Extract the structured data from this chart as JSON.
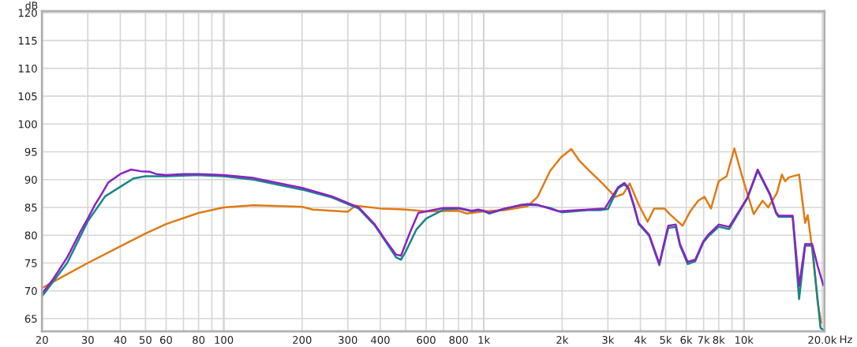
{
  "chart_data": {
    "type": "line",
    "ylabel": "dB",
    "xlim": [
      20,
      20400
    ],
    "ylim": [
      62.7,
      120.3
    ],
    "log": "x",
    "grid": true,
    "legend": false,
    "marker": "none",
    "line_style": "solid",
    "xticks": [
      20,
      30,
      40,
      50,
      60,
      {
        "value": 70,
        "label": null
      },
      80,
      {
        "value": 90,
        "label": null
      },
      100,
      200,
      300,
      400,
      {
        "value": 500,
        "label": null
      },
      600,
      {
        "value": 700,
        "label": null
      },
      800,
      {
        "value": 900,
        "label": null
      },
      {
        "value": 1000,
        "label": "1k"
      },
      {
        "value": 2000,
        "label": "2k"
      },
      {
        "value": 3000,
        "label": "3k"
      },
      {
        "value": 4000,
        "label": "4k"
      },
      {
        "value": 5000,
        "label": "5k"
      },
      {
        "value": 6000,
        "label": "6k"
      },
      {
        "value": 7000,
        "label": "7k"
      },
      {
        "value": 8000,
        "label": "8k"
      },
      {
        "value": 9000,
        "label": null
      },
      {
        "value": 10000,
        "label": "10k"
      },
      {
        "value": 20000,
        "label": "20.0k"
      }
    ],
    "xlabel": "Hz",
    "yticks": [
      65,
      70,
      75,
      80,
      85,
      90,
      95,
      100,
      105,
      110,
      115,
      120
    ],
    "series": [
      {
        "color": "#e07b14",
        "x": [
          20,
          25,
          30,
          40,
          50,
          60,
          80,
          100,
          130,
          200,
          220,
          300,
          320,
          400,
          500,
          600,
          800,
          860,
          1000,
          1200,
          1470,
          1610,
          1800,
          1980,
          2170,
          2320,
          2540,
          2860,
          3200,
          3430,
          3640,
          3940,
          4260,
          4520,
          4950,
          5180,
          5810,
          6220,
          6670,
          7060,
          7470,
          8000,
          8580,
          9190,
          9840,
          10400,
          10900,
          11800,
          12400,
          13400,
          14000,
          14400,
          14900,
          16300,
          17200,
          17600,
          18300,
          19200,
          19800
        ],
        "values": [
          70.5,
          73,
          75,
          78,
          80.3,
          82,
          84,
          85,
          85.4,
          85.1,
          84.6,
          84.2,
          85.3,
          84.8,
          84.6,
          84.3,
          84.4,
          83.9,
          84.3,
          84.5,
          85.2,
          86.9,
          91.6,
          94,
          95.5,
          93.5,
          91.6,
          89.3,
          86.9,
          87.4,
          89.3,
          85.5,
          82.4,
          84.8,
          84.8,
          83.8,
          81.7,
          84.3,
          86.2,
          86.9,
          84.8,
          89.7,
          90.6,
          95.6,
          90.6,
          86.9,
          83.8,
          86.2,
          85,
          87.6,
          90.9,
          89.7,
          90.4,
          90.9,
          82.2,
          83.6,
          77.5,
          68.1,
          64.3
        ]
      },
      {
        "color": "#17868a",
        "x": [
          20,
          25,
          30,
          35,
          40,
          45,
          50,
          60,
          80,
          100,
          130,
          200,
          260,
          300,
          330,
          380,
          420,
          460,
          480,
          500,
          550,
          600,
          700,
          800,
          900,
          950,
          1000,
          1050,
          1200,
          1400,
          1600,
          1800,
          2000,
          2500,
          2800,
          3000,
          3280,
          3470,
          3600,
          3770,
          3940,
          4320,
          4730,
          4950,
          5120,
          5470,
          5680,
          6080,
          6500,
          6980,
          7300,
          8000,
          8780,
          10300,
          11300,
          12600,
          13300,
          13600,
          15400,
          16300,
          17200,
          18300,
          19700,
          20200
        ],
        "values": [
          69,
          75,
          82.5,
          87,
          88.7,
          90.2,
          90.6,
          90.6,
          90.8,
          90.6,
          90,
          88.2,
          86.8,
          85.6,
          84.8,
          81.8,
          78.8,
          76,
          75.6,
          77,
          81,
          83,
          84.6,
          84.8,
          84.3,
          84.5,
          84.3,
          83.9,
          84.7,
          85.5,
          85.4,
          84.9,
          84.1,
          84.5,
          84.5,
          84.7,
          88.4,
          89.2,
          88.3,
          85.3,
          82,
          79.9,
          74.6,
          78.5,
          81.3,
          81.5,
          78.1,
          74.8,
          75.3,
          78.7,
          79.8,
          81.5,
          81.1,
          86.6,
          91.6,
          87.2,
          83.9,
          83.3,
          83.3,
          68.5,
          78.1,
          78.1,
          63.3,
          63
        ]
      },
      {
        "color": "#8b22c4",
        "x": [
          20,
          22,
          25,
          28,
          30,
          32,
          34,
          36,
          40,
          44,
          48,
          52,
          55,
          60,
          70,
          80,
          100,
          130,
          200,
          260,
          300,
          330,
          380,
          420,
          460,
          480,
          520,
          560,
          600,
          700,
          800,
          900,
          950,
          1000,
          1050,
          1200,
          1470,
          1600,
          1930,
          2500,
          2920,
          3280,
          3470,
          3600,
          3770,
          3940,
          4320,
          4730,
          4950,
          5120,
          5470,
          5680,
          6080,
          6500,
          6980,
          7300,
          8000,
          8780,
          10300,
          11300,
          12600,
          13300,
          13600,
          15400,
          16300,
          17200,
          18300,
          19200,
          20200
        ],
        "values": [
          69.5,
          72,
          76,
          80.5,
          83,
          85.5,
          87.5,
          89.5,
          91,
          91.8,
          91.5,
          91.4,
          91,
          90.8,
          91,
          91,
          90.8,
          90.3,
          88.5,
          87,
          85.8,
          85,
          82,
          79,
          76.5,
          76.3,
          80.5,
          84,
          84.3,
          84.9,
          84.9,
          84.4,
          84.6,
          84.4,
          84,
          84.8,
          85.6,
          85.5,
          84.3,
          84.6,
          84.8,
          88.6,
          89.4,
          88.5,
          85.5,
          82.2,
          80.1,
          74.9,
          78.9,
          81.7,
          81.9,
          78.4,
          75.2,
          75.6,
          78.9,
          80.1,
          81.9,
          81.5,
          86.7,
          91.8,
          87.4,
          84.1,
          83.5,
          83.5,
          70.9,
          78.4,
          78.4,
          74.5,
          71
        ]
      }
    ]
  }
}
